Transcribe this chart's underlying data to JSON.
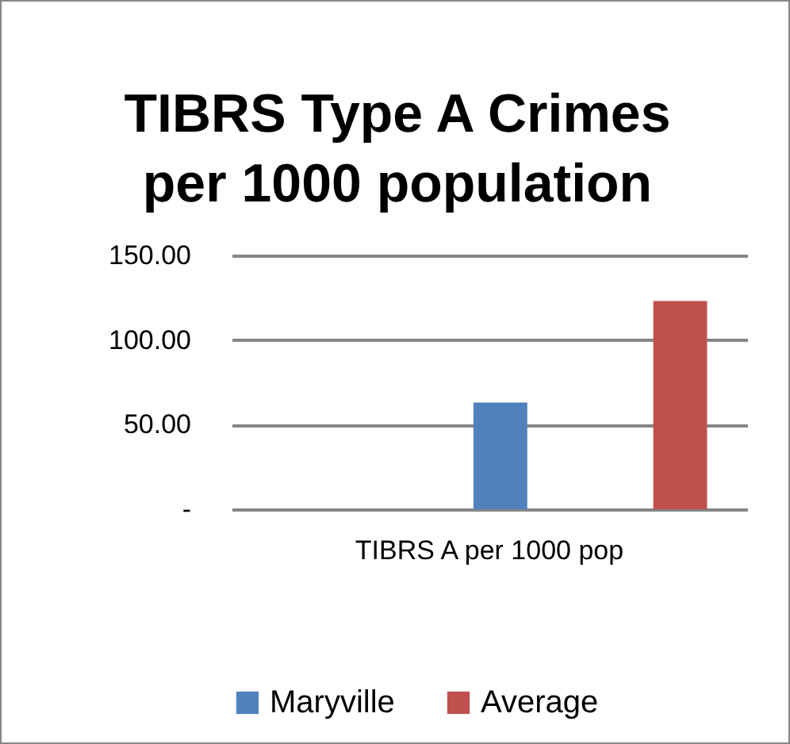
{
  "chart_data": {
    "type": "bar",
    "title": "TIBRS Type A Crimes per 1000 population",
    "categories": [
      "TIBRS A per 1000 pop"
    ],
    "series": [
      {
        "name": "Maryville",
        "color": "#4f81bd",
        "values": [
          63
        ]
      },
      {
        "name": "Average",
        "color": "#c0504d",
        "values": [
          123
        ]
      }
    ],
    "ylim": [
      0,
      150
    ],
    "yticks": [
      {
        "value": 0,
        "label": "-"
      },
      {
        "value": 50,
        "label": "50.00"
      },
      {
        "value": 100,
        "label": "100.00"
      },
      {
        "value": 150,
        "label": "150.00"
      }
    ],
    "grid": "y",
    "legend": "bottom"
  }
}
